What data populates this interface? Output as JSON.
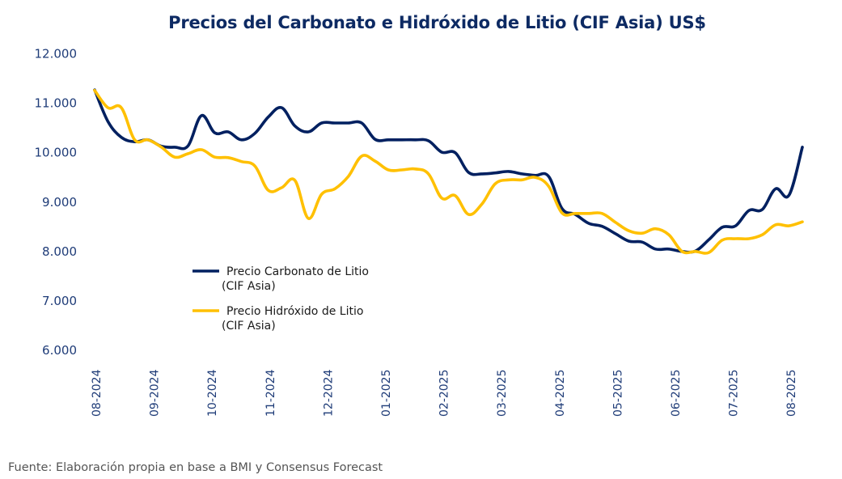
{
  "chart_data": {
    "type": "line",
    "title": "Precios del Carbonato e Hidróxido de Litio (CIF Asia) US$",
    "xlabel": "",
    "ylabel": "",
    "ylim": [
      6000,
      12000
    ],
    "yticks": [
      6000,
      7000,
      8000,
      9000,
      10000,
      11000,
      12000
    ],
    "ytick_labels": [
      "6.000",
      "7.000",
      "8.000",
      "9.000",
      "10.000",
      "11.000",
      "12.000"
    ],
    "x_tick_labels": [
      "08-2024",
      "09-2024",
      "10-2024",
      "11-2024",
      "12-2024",
      "01-2025",
      "02-2025",
      "03-2025",
      "04-2025",
      "05-2025",
      "06-2025",
      "07-2025",
      "08-2025"
    ],
    "x_frequency": "weekly",
    "points_per_month": 4.33,
    "grid": false,
    "legend_position": "center-left",
    "series": [
      {
        "name": "Precio Carbonato de Litio (CIF Asia)",
        "legend_lines": [
          "Precio Carbonato de Litio",
          "(CIF Asia)"
        ],
        "color": "#002060",
        "values": [
          11270,
          10630,
          10310,
          10220,
          10260,
          10130,
          10110,
          10140,
          10750,
          10400,
          10420,
          10260,
          10390,
          10720,
          10910,
          10540,
          10420,
          10600,
          10600,
          10600,
          10600,
          10270,
          10260,
          10260,
          10260,
          10240,
          10010,
          10000,
          9600,
          9570,
          9590,
          9620,
          9570,
          9540,
          9520,
          8870,
          8750,
          8570,
          8510,
          8360,
          8210,
          8190,
          8050,
          8050,
          8000,
          8010,
          8240,
          8490,
          8520,
          8830,
          8850,
          9270,
          9140,
          10110
        ]
      },
      {
        "name": "Precio Hidróxido de Litio (CIF Asia)",
        "legend_lines": [
          "Precio Hidróxido de Litio",
          "(CIF Asia)"
        ],
        "color": "#FFC000",
        "values": [
          11260,
          10910,
          10910,
          10260,
          10260,
          10110,
          9910,
          9980,
          10060,
          9910,
          9900,
          9820,
          9730,
          9240,
          9290,
          9440,
          8670,
          9160,
          9270,
          9520,
          9930,
          9830,
          9650,
          9650,
          9670,
          9570,
          9080,
          9130,
          8750,
          8960,
          9370,
          9450,
          9450,
          9500,
          9320,
          8780,
          8770,
          8770,
          8770,
          8590,
          8420,
          8370,
          8460,
          8340,
          8000,
          8000,
          7980,
          8230,
          8260,
          8260,
          8340,
          8540,
          8520,
          8600
        ]
      }
    ],
    "source_note": "Fuente: Elaboración propia en base a BMI y Consensus Forecast"
  }
}
